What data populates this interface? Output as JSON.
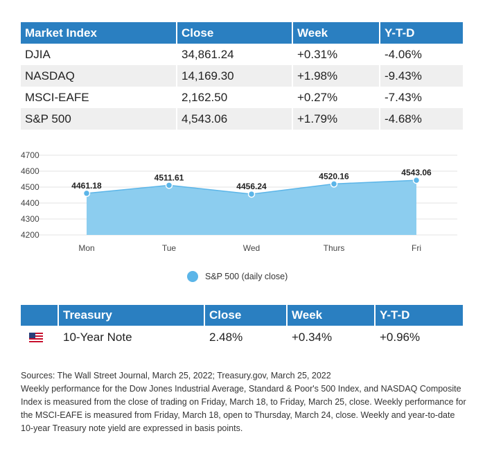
{
  "market_table": {
    "headers": [
      "Market Index",
      "Close",
      "Week",
      "Y-T-D"
    ],
    "rows": [
      [
        "DJIA",
        "34,861.24",
        "+0.31%",
        "-4.06%"
      ],
      [
        "NASDAQ",
        "14,169.30",
        "+1.98%",
        "-9.43%"
      ],
      [
        "MSCI-EAFE",
        "2,162.50",
        "+0.27%",
        "-7.43%"
      ],
      [
        "S&P 500",
        "4,543.06",
        "+1.79%",
        "-4.68%"
      ]
    ]
  },
  "chart_data": {
    "type": "area",
    "categories": [
      "Mon",
      "Tue",
      "Wed",
      "Thurs",
      "Fri"
    ],
    "series": [
      {
        "name": "S&P 500 (daily close)",
        "values": [
          4461.18,
          4511.61,
          4456.24,
          4520.16,
          4543.06
        ]
      }
    ],
    "data_labels": [
      "4461.18",
      "4511.61",
      "4456.24",
      "4520.16",
      "4543.06"
    ],
    "yticks": [
      "4700",
      "4600",
      "4500",
      "4400",
      "4300",
      "4200"
    ],
    "ylim": [
      4200,
      4700
    ],
    "grid": true,
    "legend_position": "bottom",
    "colors": {
      "fill": "#8ccdef",
      "line": "#5bb5e8",
      "point": "#5bb5e8"
    }
  },
  "treasury_table": {
    "headers": [
      "",
      "Treasury",
      "Close",
      "Week",
      "Y-T-D"
    ],
    "row": {
      "icon": "us-flag-icon",
      "label": "10-Year Note",
      "close": "2.48%",
      "week": "+0.34%",
      "ytd": "+0.96%"
    }
  },
  "footer": {
    "sources": "Sources: The Wall Street Journal, March 25, 2022; Treasury.gov, March 25, 2022",
    "notes": "Weekly performance for the Dow Jones Industrial Average, Standard & Poor's 500 Index, and NASDAQ Composite Index is measured from the close of trading on Friday, March 18, to Friday, March 25, close. Weekly performance for the MSCI-EAFE is measured from Friday, March 18, open to Thursday, March 24, close. Weekly and year-to-date 10-year Treasury note yield are expressed in basis points."
  },
  "colors": {
    "header_bg": "#2a7fc1",
    "alt_row_bg": "#efefef"
  }
}
